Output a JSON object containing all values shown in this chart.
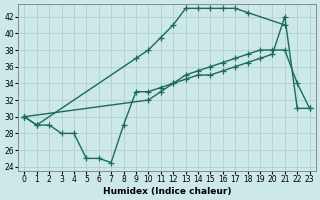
{
  "xlabel": "Humidex (Indice chaleur)",
  "background_color": "#cce8e8",
  "grid_color": "#aacccc",
  "line_color": "#1a6b5a",
  "series": [
    {
      "name": "line1_steep",
      "x": [
        0,
        1,
        9,
        10,
        11,
        12,
        13,
        14,
        15,
        16,
        17,
        18,
        21
      ],
      "y": [
        30,
        29,
        37,
        38,
        39.5,
        41,
        43,
        43,
        43,
        43,
        43,
        42.5,
        41
      ]
    },
    {
      "name": "line2_diagonal",
      "x": [
        0,
        10,
        11,
        12,
        13,
        14,
        15,
        16,
        17,
        18,
        19,
        20,
        21,
        22,
        23
      ],
      "y": [
        30,
        32,
        33,
        34,
        35,
        35.5,
        36,
        36.5,
        37,
        37.5,
        38,
        38,
        38,
        34,
        31
      ]
    },
    {
      "name": "line3_dip",
      "x": [
        0,
        1,
        2,
        3,
        4,
        5,
        6,
        7,
        8,
        9,
        10,
        11,
        12,
        13,
        14,
        15,
        16,
        17,
        18,
        19,
        20,
        21,
        22,
        23
      ],
      "y": [
        30,
        29,
        29,
        28,
        28,
        25,
        25,
        24.5,
        29,
        33,
        33,
        33.5,
        34,
        34.5,
        35,
        35,
        35.5,
        36,
        36.5,
        37,
        37.5,
        42,
        31,
        31
      ]
    }
  ],
  "ylim": [
    23.5,
    43.5
  ],
  "xlim": [
    -0.5,
    23.5
  ],
  "yticks": [
    24,
    26,
    28,
    30,
    32,
    34,
    36,
    38,
    40,
    42
  ],
  "xticks": [
    0,
    1,
    2,
    3,
    4,
    5,
    6,
    7,
    8,
    9,
    10,
    11,
    12,
    13,
    14,
    15,
    16,
    17,
    18,
    19,
    20,
    21,
    22,
    23
  ],
  "marker": "+",
  "markersize": 4,
  "linewidth": 1.0
}
